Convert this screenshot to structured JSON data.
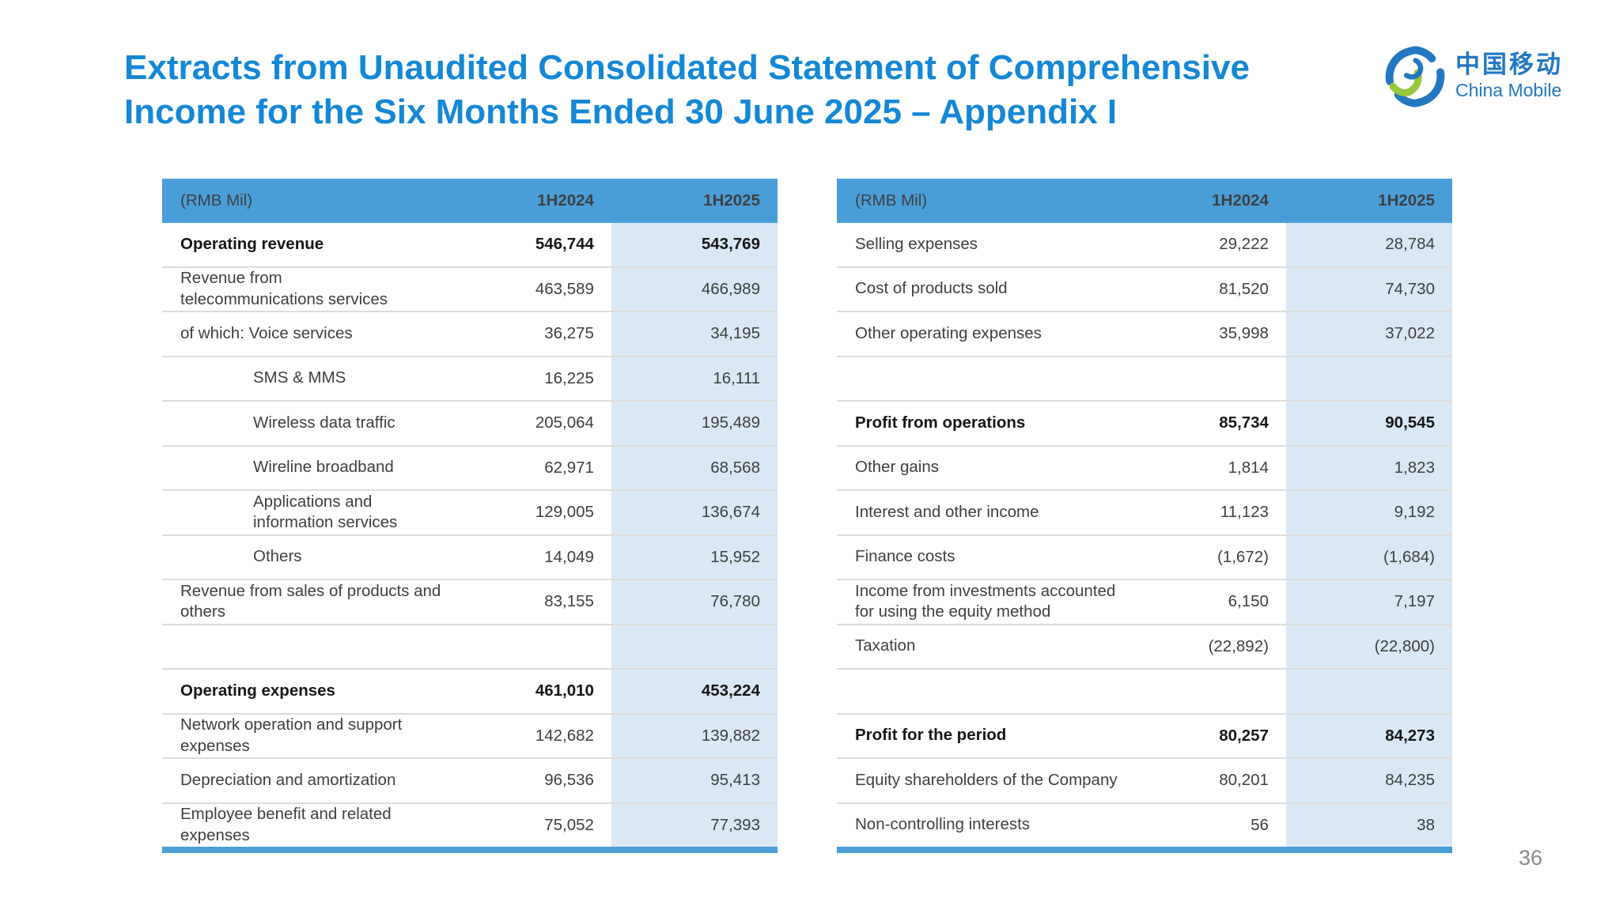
{
  "slide": {
    "title": "Extracts from Unaudited Consolidated Statement of Comprehensive\nIncome for the Six Months Ended 30 June 2025 – Appendix I",
    "page_number": "36"
  },
  "logo": {
    "chinese_name": "中国移动",
    "english_name": "China Mobile"
  },
  "colors": {
    "title_blue": "#1487D6",
    "header_bg": "#4A9ED8",
    "highlight_column_bg": "#D9E8F4",
    "row_divider": "#DCDCDC",
    "bottom_accent_bar": "#4A9ED8",
    "logo_blue": "#2277C0",
    "logo_green": "#97C83C"
  },
  "tables": {
    "left": {
      "columns": [
        "(RMB Mil)",
        "1H2024",
        "1H2025"
      ],
      "rows": [
        {
          "label": "Operating revenue",
          "v2024": "546,744",
          "v2025": "543,769",
          "bold": true
        },
        {
          "label": "Revenue from\ntelecommunications services",
          "v2024": "463,589",
          "v2025": "466,989"
        },
        {
          "label": "of which: Voice services",
          "v2024": "36,275",
          "v2025": "34,195"
        },
        {
          "label": "SMS & MMS",
          "v2024": "16,225",
          "v2025": "16,111",
          "indent": true
        },
        {
          "label": "Wireless data traffic",
          "v2024": "205,064",
          "v2025": "195,489",
          "indent": true
        },
        {
          "label": "Wireline broadband",
          "v2024": "62,971",
          "v2025": "68,568",
          "indent": true
        },
        {
          "label": "Applications and\ninformation services",
          "v2024": "129,005",
          "v2025": "136,674",
          "indent": true
        },
        {
          "label": "Others",
          "v2024": "14,049",
          "v2025": "15,952",
          "indent": true
        },
        {
          "label": "Revenue from sales of products and\nothers",
          "v2024": "83,155",
          "v2025": "76,780"
        },
        {
          "empty": true
        },
        {
          "label": "Operating expenses",
          "v2024": "461,010",
          "v2025": "453,224",
          "bold": true
        },
        {
          "label": "Network operation and support\nexpenses",
          "v2024": "142,682",
          "v2025": "139,882"
        },
        {
          "label": "Depreciation and amortization",
          "v2024": "96,536",
          "v2025": "95,413"
        },
        {
          "label": "Employee benefit and related\nexpenses",
          "v2024": "75,052",
          "v2025": "77,393"
        }
      ]
    },
    "right": {
      "columns": [
        "(RMB Mil)",
        "1H2024",
        "1H2025"
      ],
      "rows": [
        {
          "label": "Selling expenses",
          "v2024": "29,222",
          "v2025": "28,784"
        },
        {
          "label": "Cost of products sold",
          "v2024": "81,520",
          "v2025": "74,730"
        },
        {
          "label": "Other operating expenses",
          "v2024": "35,998",
          "v2025": "37,022"
        },
        {
          "empty": true
        },
        {
          "label": "Profit from operations",
          "v2024": "85,734",
          "v2025": "90,545",
          "bold": true
        },
        {
          "label": "Other gains",
          "v2024": "1,814",
          "v2025": "1,823"
        },
        {
          "label": "Interest and other income",
          "v2024": "11,123",
          "v2025": "9,192"
        },
        {
          "label": "Finance costs",
          "v2024": "(1,672)",
          "v2025": "(1,684)"
        },
        {
          "label": "Income from investments accounted\nfor using the equity method",
          "v2024": "6,150",
          "v2025": "7,197"
        },
        {
          "label": "Taxation",
          "v2024": "(22,892)",
          "v2025": "(22,800)"
        },
        {
          "empty": true
        },
        {
          "label": "Profit for the period",
          "v2024": "80,257",
          "v2025": "84,273",
          "bold": true
        },
        {
          "label": "Equity shareholders of the Company",
          "v2024": "80,201",
          "v2025": "84,235"
        },
        {
          "label": "Non-controlling interests",
          "v2024": "56",
          "v2025": "38"
        }
      ]
    }
  }
}
